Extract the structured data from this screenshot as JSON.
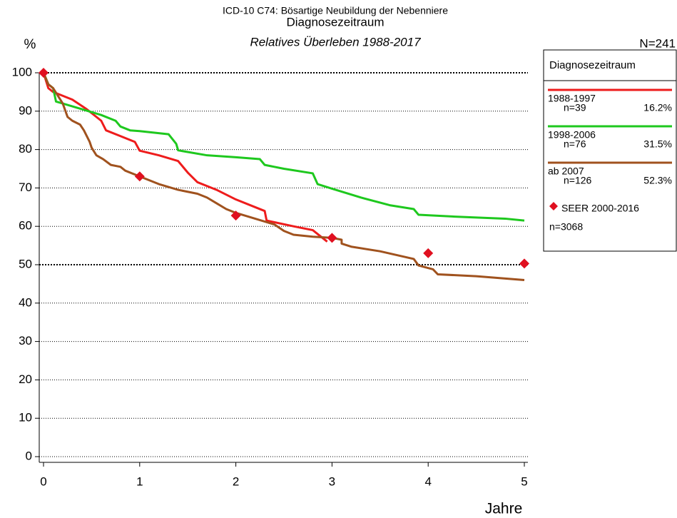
{
  "chart_data": {
    "type": "line",
    "title": "ICD-10 C74: Bösartige Neubildung der Nebenniere",
    "subtitle": "Diagnosezeitraum",
    "subtitle2": "Relatives Überleben 1988-2017",
    "y_label": "%",
    "x_label": "Jahre",
    "total_label": "N=241",
    "legend_title": "Diagnosezeitraum",
    "xlim": [
      0,
      5
    ],
    "xticks": [
      0,
      1,
      2,
      3,
      4,
      5
    ],
    "ylim": [
      0,
      100
    ],
    "yticks": [
      0,
      10,
      20,
      30,
      40,
      50,
      60,
      70,
      80,
      90,
      100
    ],
    "grid": true,
    "grid_emphasis": [
      50,
      100
    ],
    "legend": "right",
    "series": [
      {
        "name": "1988-1997",
        "n": "n=39",
        "share": "16.2%",
        "color": "#ee1c1c",
        "type": "line",
        "x": [
          0,
          0.05,
          0.1,
          0.3,
          0.45,
          0.6,
          0.65,
          0.8,
          0.95,
          1.0,
          1.2,
          1.4,
          1.5,
          1.6,
          1.8,
          2.0,
          2.2,
          2.3,
          2.32,
          2.6,
          2.8,
          2.85,
          2.95
        ],
        "values": [
          100,
          96,
          95,
          93,
          90.5,
          87.5,
          85,
          83.5,
          82,
          79.7,
          78.5,
          77,
          74,
          71.5,
          69.5,
          67,
          65,
          64,
          61.5,
          60,
          59,
          58,
          56
        ]
      },
      {
        "name": "1998-2006",
        "n": "n=76",
        "share": "31.5%",
        "color": "#1ec81e",
        "type": "line",
        "x": [
          0,
          0.05,
          0.1,
          0.13,
          0.2,
          0.4,
          0.6,
          0.75,
          0.8,
          0.9,
          1.0,
          1.3,
          1.38,
          1.4,
          1.7,
          2.0,
          2.25,
          2.3,
          2.5,
          2.8,
          2.85,
          3.0,
          3.3,
          3.6,
          3.85,
          3.9,
          4.3,
          4.8,
          5.0
        ],
        "values": [
          100,
          97,
          96,
          92.5,
          92,
          90.5,
          89,
          87.5,
          86,
          85,
          84.8,
          84,
          81.5,
          79.8,
          78.5,
          78,
          77.5,
          76,
          75,
          73.8,
          71,
          69.8,
          67.5,
          65.5,
          64.5,
          63,
          62.5,
          62,
          61.5
        ]
      },
      {
        "name": "ab 2007",
        "n": "n=126",
        "share": "52.3%",
        "color": "#a0521e",
        "type": "line",
        "x": [
          0,
          0.05,
          0.1,
          0.15,
          0.2,
          0.25,
          0.3,
          0.38,
          0.42,
          0.48,
          0.5,
          0.55,
          0.62,
          0.7,
          0.8,
          0.85,
          1.0,
          1.2,
          1.4,
          1.6,
          1.7,
          1.8,
          1.9,
          2.0,
          2.2,
          2.4,
          2.5,
          2.6,
          2.8,
          3.0,
          3.1,
          3.1,
          3.2,
          3.5,
          3.85,
          3.9,
          4.05,
          4.1,
          4.5,
          5.0
        ],
        "values": [
          100,
          97,
          96,
          94,
          92,
          88.5,
          87.5,
          86.5,
          85,
          82,
          80.5,
          78.5,
          77.5,
          76,
          75.5,
          74.5,
          73,
          71,
          69.5,
          68.5,
          67.5,
          66,
          64.5,
          63.5,
          62,
          60.5,
          58.8,
          57.8,
          57.3,
          57,
          56.5,
          55.5,
          54.7,
          53.5,
          51.5,
          49.8,
          48.8,
          47.5,
          47,
          46
        ]
      },
      {
        "name": "SEER 2000-2016",
        "n": "n=3068",
        "color": "#e01020",
        "type": "scatter",
        "x": [
          0,
          1,
          2,
          3,
          4,
          5
        ],
        "values": [
          100,
          73,
          62.8,
          57,
          53,
          50.3
        ]
      }
    ]
  }
}
